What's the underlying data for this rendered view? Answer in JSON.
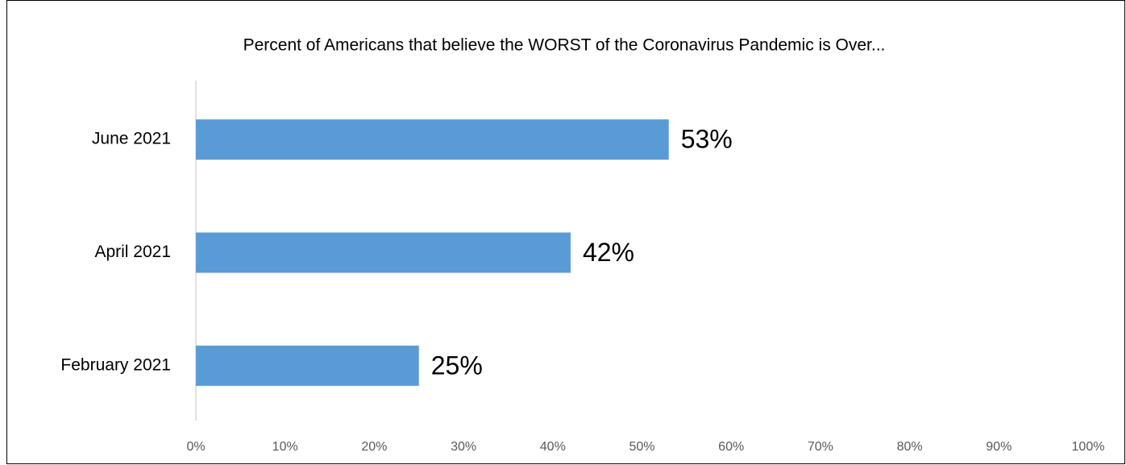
{
  "chart_data": {
    "type": "hbar",
    "title": "Percent of Americans that believe the WORST of the Coronavirus Pandemic is Over...",
    "categories": [
      "June 2021",
      "April 2021",
      "February 2021"
    ],
    "values": [
      53,
      42,
      25
    ],
    "value_labels": [
      "53%",
      "42%",
      "25%"
    ],
    "color": "#5b9bd5",
    "xlim": [
      0,
      100
    ],
    "xticks": [
      {
        "value": 0,
        "label": "0%"
      },
      {
        "value": 10,
        "label": "10%"
      },
      {
        "value": 20,
        "label": "20%"
      },
      {
        "value": 30,
        "label": "30%"
      },
      {
        "value": 40,
        "label": "40%"
      },
      {
        "value": 50,
        "label": "50%"
      },
      {
        "value": 60,
        "label": "60%"
      },
      {
        "value": 70,
        "label": "70%"
      },
      {
        "value": 80,
        "label": "80%"
      },
      {
        "value": 90,
        "label": "90%"
      },
      {
        "value": 100,
        "label": "100%"
      }
    ],
    "grid": false
  }
}
